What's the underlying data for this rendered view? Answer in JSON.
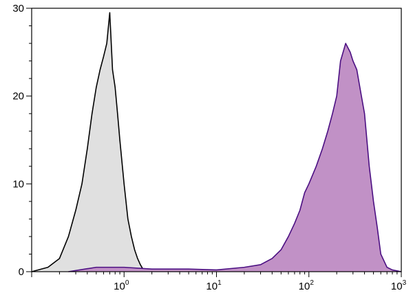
{
  "chart_data": {
    "type": "area",
    "title": "",
    "xlabel": "",
    "ylabel": "",
    "x_scale": "log",
    "xlim": [
      0.1,
      1000
    ],
    "ylim": [
      0,
      30
    ],
    "grid": false,
    "legend": "none",
    "x_ticks": [
      {
        "value": 1,
        "base": "10",
        "exp": "0"
      },
      {
        "value": 10,
        "base": "10",
        "exp": "1"
      },
      {
        "value": 100,
        "base": "10",
        "exp": "2"
      },
      {
        "value": 1000,
        "base": "10",
        "exp": "3"
      }
    ],
    "y_ticks": [
      {
        "value": 0,
        "label": "0"
      },
      {
        "value": 10,
        "label": "10"
      },
      {
        "value": 20,
        "label": "20"
      },
      {
        "value": 30,
        "label": "30"
      }
    ],
    "series": [
      {
        "fill": "#e0e0e0",
        "stroke": "#000000",
        "x": [
          0.1,
          0.15,
          0.2,
          0.25,
          0.3,
          0.35,
          0.4,
          0.45,
          0.5,
          0.55,
          0.6,
          0.65,
          0.7,
          0.75,
          0.8,
          0.85,
          0.9,
          1.0,
          1.1,
          1.2,
          1.3,
          1.4,
          1.5,
          1.6,
          2.0
        ],
        "y": [
          0,
          0.5,
          1.5,
          4,
          7,
          10,
          14,
          18,
          21,
          23,
          24.5,
          26,
          29.5,
          23,
          21,
          18,
          15,
          10,
          6,
          4,
          2.5,
          1.5,
          0.8,
          0.3,
          0
        ]
      },
      {
        "fill": "#c191c6",
        "stroke": "#4b0f82",
        "x": [
          0.25,
          0.5,
          1,
          2,
          5,
          10,
          20,
          30,
          40,
          50,
          60,
          70,
          80,
          90,
          100,
          120,
          140,
          160,
          180,
          200,
          220,
          250,
          280,
          300,
          330,
          370,
          400,
          450,
          500,
          550,
          600,
          700,
          800,
          1000
        ],
        "y": [
          0,
          0.5,
          0.5,
          0.3,
          0.3,
          0.2,
          0.5,
          0.8,
          1.5,
          2.5,
          4,
          5.5,
          7,
          9,
          10,
          12,
          14,
          16,
          18,
          20,
          24,
          26,
          25,
          24,
          23,
          20,
          18,
          12,
          8,
          5,
          2,
          0.5,
          0.2,
          0
        ]
      }
    ]
  }
}
